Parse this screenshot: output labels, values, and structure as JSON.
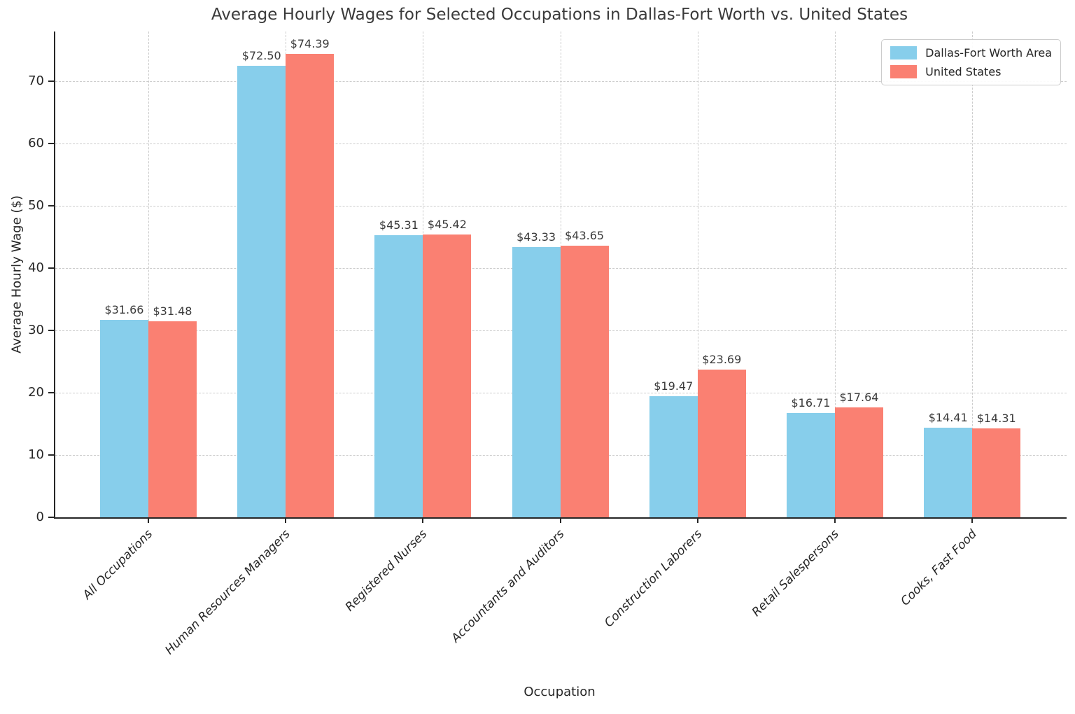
{
  "chart_data": {
    "type": "bar",
    "title": "Average Hourly Wages for Selected Occupations in Dallas-Fort Worth vs. United States",
    "xlabel": "Occupation",
    "ylabel": "Average Hourly Wage ($)",
    "categories": [
      "All Occupations",
      "Human Resources Managers",
      "Registered Nurses",
      "Accountants and Auditors",
      "Construction Laborers",
      "Retail Salespersons",
      "Cooks, Fast Food"
    ],
    "series": [
      {
        "name": "Dallas-Fort Worth Area",
        "color": "#87CEEB",
        "values": [
          31.66,
          72.5,
          45.31,
          43.33,
          19.47,
          16.71,
          14.41
        ],
        "labels": [
          "$31.66",
          "$72.50",
          "$45.31",
          "$43.33",
          "$19.47",
          "$16.71",
          "$14.41"
        ]
      },
      {
        "name": "United States",
        "color": "#FA8072",
        "values": [
          31.48,
          74.39,
          45.42,
          43.65,
          23.69,
          17.64,
          14.31
        ],
        "labels": [
          "$31.48",
          "$74.39",
          "$45.42",
          "$43.65",
          "$23.69",
          "$17.64",
          "$14.31"
        ]
      }
    ],
    "ylim": [
      0,
      78
    ],
    "yticks": [
      0,
      10,
      20,
      30,
      40,
      50,
      60,
      70
    ],
    "grid": true,
    "grid_style": "dashed",
    "legend_position": "upper right",
    "colors": {
      "grid": "#cccccc",
      "axis": "#262626",
      "title_text": "#3a3a3a",
      "value_label_text": "#3a3a3a",
      "background": "#ffffff"
    }
  }
}
